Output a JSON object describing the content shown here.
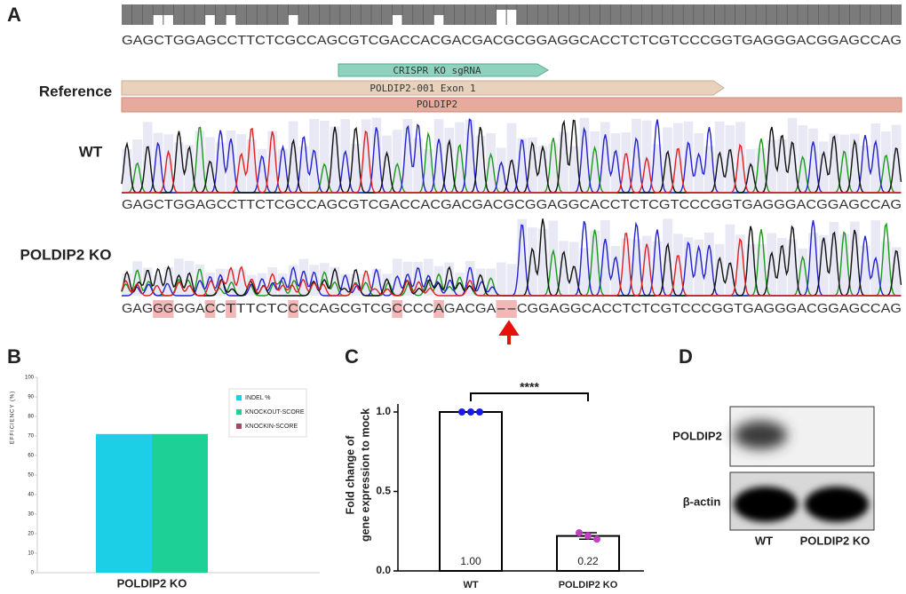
{
  "panel_labels": [
    "A",
    "B",
    "C",
    "D"
  ],
  "panel_a": {
    "reference_sequence": "GAGCTGGAGCCTTCTCGCCAGCGTCGACCACGACGACGCGGAGGCACCTCTCGTCCCGGTGAGGGACGGAGCCAG",
    "row_labels": {
      "reference": "Reference",
      "wt": "WT",
      "ko": "POLDIP2 KO"
    },
    "features": [
      "CRISPR KO sgRNA",
      "POLDIP2-001 Exon 1",
      "POLDIP2"
    ],
    "wt_sequence": "GAGCTGGAGCCTTCTCGCCAGCGTCGACCACGACGACGCGGAGGCACCTCTCGTCCCGGTGAGGGACGGAGCCAG",
    "ko_sequence": [
      {
        "text": "GAG",
        "mismatch": false
      },
      {
        "text": "GG",
        "mismatch": true
      },
      {
        "text": "GGA",
        "mismatch": false
      },
      {
        "text": "C",
        "mismatch": true
      },
      {
        "text": "C",
        "mismatch": false
      },
      {
        "text": "T",
        "mismatch": true
      },
      {
        "text": "TTCTC",
        "mismatch": false
      },
      {
        "text": "C",
        "mismatch": true
      },
      {
        "text": "CCAGCGTCG",
        "mismatch": false
      },
      {
        "text": "C",
        "mismatch": true
      },
      {
        "text": "CCC",
        "mismatch": false
      },
      {
        "text": "A",
        "mismatch": true
      },
      {
        "text": "GACGA",
        "mismatch": false
      },
      {
        "text": "--",
        "mismatch": true
      },
      {
        "text": "CGGAGGCACCTCTCGTCCCGGTGAGGGACGGAGCCAG",
        "mismatch": false
      }
    ]
  },
  "chart_data": [
    {
      "type": "bar",
      "ylabel": "EFFICIENCY (%)",
      "categories": [
        "POLDIP2 KO"
      ],
      "series": [
        {
          "name": "INDEL %",
          "color": "#1ccfe6",
          "values": [
            71
          ]
        },
        {
          "name": "KNOCKOUT-SCORE",
          "color": "#1dd196",
          "values": [
            71
          ]
        },
        {
          "name": "KNOCKIN-SCORE",
          "color": "#a2486a",
          "values": [
            0
          ]
        }
      ],
      "ylim": [
        0,
        100
      ],
      "yticks": [
        0,
        10,
        20,
        30,
        40,
        50,
        60,
        70,
        80,
        90,
        100
      ],
      "legend": "upper right"
    },
    {
      "type": "bar",
      "ylabel": [
        "Fold change of",
        "gene expression to mock"
      ],
      "categories": [
        "WT",
        "POLDIP2 KO"
      ],
      "values": [
        1,
        0.22
      ],
      "value_labels": [
        "1.00",
        "0.22"
      ],
      "errors": [
        0,
        0.02
      ],
      "points": [
        [
          1,
          1,
          1
        ],
        [
          0.24,
          0.22,
          0.2
        ]
      ],
      "point_colors": [
        "#1a1ae6",
        "#c040c0"
      ],
      "color": "#ffffff",
      "ylim": [
        0,
        1.05
      ],
      "yticks": [
        {
          "value": 0,
          "label": "0.0"
        },
        0.5,
        {
          "value": 1,
          "label": "1.0"
        }
      ],
      "annotation": "****"
    }
  ],
  "panel_d": {
    "bands": [
      "POLDIP2",
      "β-actin"
    ],
    "lanes": [
      "WT",
      "POLDIP2 KO"
    ]
  }
}
